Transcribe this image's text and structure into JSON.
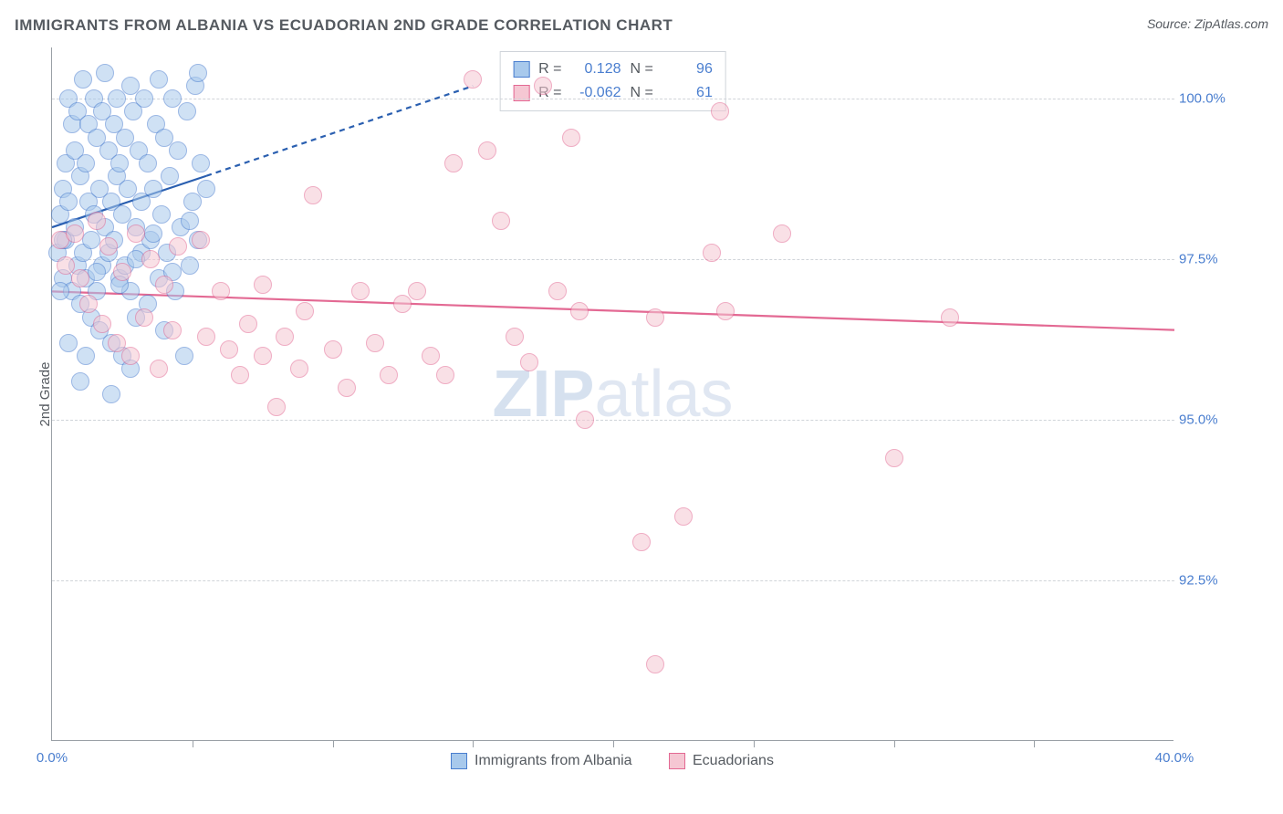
{
  "header": {
    "title": "IMMIGRANTS FROM ALBANIA VS ECUADORIAN 2ND GRADE CORRELATION CHART",
    "source": "Source: ZipAtlas.com"
  },
  "chart": {
    "type": "scatter",
    "ylabel": "2nd Grade",
    "background": "#ffffff",
    "axis_color": "#9aa0a6",
    "grid_color": "#d0d4d9",
    "tick_color": "#4a7ecf",
    "text_color": "#555a60",
    "xlim": [
      0,
      40
    ],
    "ylim": [
      90,
      100.8
    ],
    "x_tick_label_min": "0.0%",
    "x_tick_label_max": "40.0%",
    "x_minor_ticks": [
      5,
      10,
      15,
      20,
      25,
      30,
      35
    ],
    "yticks": [
      {
        "v": 92.5,
        "label": "92.5%"
      },
      {
        "v": 95.0,
        "label": "95.0%"
      },
      {
        "v": 97.5,
        "label": "97.5%"
      },
      {
        "v": 100.0,
        "label": "100.0%"
      }
    ],
    "marker_radius": 10,
    "marker_opacity": 0.55,
    "marker_border_width": 1.2,
    "series": [
      {
        "name": "Immigrants from Albania",
        "color_fill": "#a8c9ec",
        "color_stroke": "#4a7ecf",
        "R": "0.128",
        "N": "96",
        "trend": {
          "x1": 0,
          "y1": 98.0,
          "x2": 5.5,
          "y2": 98.8,
          "dash_x2": 15,
          "dash_y2": 100.2,
          "color": "#2a5fb0",
          "width": 2.2
        },
        "points": [
          [
            0.2,
            97.6
          ],
          [
            0.3,
            98.2
          ],
          [
            0.4,
            97.2
          ],
          [
            0.4,
            98.6
          ],
          [
            0.5,
            99.0
          ],
          [
            0.5,
            97.8
          ],
          [
            0.6,
            100.0
          ],
          [
            0.6,
            98.4
          ],
          [
            0.7,
            99.6
          ],
          [
            0.7,
            97.0
          ],
          [
            0.8,
            98.0
          ],
          [
            0.8,
            99.2
          ],
          [
            0.9,
            97.4
          ],
          [
            0.9,
            99.8
          ],
          [
            1.0,
            96.8
          ],
          [
            1.0,
            98.8
          ],
          [
            1.1,
            100.3
          ],
          [
            1.1,
            97.6
          ],
          [
            1.2,
            99.0
          ],
          [
            1.2,
            97.2
          ],
          [
            1.3,
            98.4
          ],
          [
            1.3,
            99.6
          ],
          [
            1.4,
            97.8
          ],
          [
            1.4,
            96.6
          ],
          [
            1.5,
            98.2
          ],
          [
            1.5,
            100.0
          ],
          [
            1.6,
            99.4
          ],
          [
            1.6,
            97.0
          ],
          [
            1.7,
            98.6
          ],
          [
            1.7,
            96.4
          ],
          [
            1.8,
            99.8
          ],
          [
            1.8,
            97.4
          ],
          [
            1.9,
            98.0
          ],
          [
            1.9,
            100.4
          ],
          [
            2.0,
            97.6
          ],
          [
            2.0,
            99.2
          ],
          [
            2.1,
            96.2
          ],
          [
            2.1,
            98.4
          ],
          [
            2.2,
            99.6
          ],
          [
            2.2,
            97.8
          ],
          [
            2.3,
            98.8
          ],
          [
            2.3,
            100.0
          ],
          [
            2.4,
            97.2
          ],
          [
            2.4,
            99.0
          ],
          [
            2.5,
            96.0
          ],
          [
            2.5,
            98.2
          ],
          [
            2.6,
            99.4
          ],
          [
            2.6,
            97.4
          ],
          [
            2.7,
            98.6
          ],
          [
            2.8,
            100.2
          ],
          [
            2.8,
            97.0
          ],
          [
            2.9,
            99.8
          ],
          [
            3.0,
            98.0
          ],
          [
            3.0,
            96.6
          ],
          [
            3.1,
            99.2
          ],
          [
            3.2,
            97.6
          ],
          [
            3.2,
            98.4
          ],
          [
            3.3,
            100.0
          ],
          [
            3.4,
            96.8
          ],
          [
            3.4,
            99.0
          ],
          [
            3.5,
            97.8
          ],
          [
            3.6,
            98.6
          ],
          [
            3.7,
            99.6
          ],
          [
            3.8,
            97.2
          ],
          [
            3.8,
            100.3
          ],
          [
            3.9,
            98.2
          ],
          [
            4.0,
            96.4
          ],
          [
            4.0,
            99.4
          ],
          [
            4.1,
            97.6
          ],
          [
            4.2,
            98.8
          ],
          [
            4.3,
            100.0
          ],
          [
            4.4,
            97.0
          ],
          [
            4.5,
            99.2
          ],
          [
            4.6,
            98.0
          ],
          [
            4.7,
            96.0
          ],
          [
            4.8,
            99.8
          ],
          [
            4.9,
            97.4
          ],
          [
            5.0,
            98.4
          ],
          [
            5.1,
            100.2
          ],
          [
            5.2,
            97.8
          ],
          [
            5.3,
            99.0
          ],
          [
            5.5,
            98.6
          ],
          [
            1.0,
            95.6
          ],
          [
            2.1,
            95.4
          ],
          [
            0.3,
            97.0
          ],
          [
            0.4,
            97.8
          ],
          [
            1.6,
            97.3
          ],
          [
            2.4,
            97.1
          ],
          [
            3.0,
            97.5
          ],
          [
            3.6,
            97.9
          ],
          [
            4.3,
            97.3
          ],
          [
            4.9,
            98.1
          ],
          [
            5.2,
            100.4
          ],
          [
            0.6,
            96.2
          ],
          [
            1.2,
            96.0
          ],
          [
            2.8,
            95.8
          ]
        ]
      },
      {
        "name": "Ecuadorians",
        "color_fill": "#f5c7d3",
        "color_stroke": "#e36993",
        "R": "-0.062",
        "N": "61",
        "trend": {
          "x1": 0,
          "y1": 97.0,
          "x2": 40,
          "y2": 96.4,
          "color": "#e36993",
          "width": 2.2
        },
        "points": [
          [
            0.3,
            97.8
          ],
          [
            0.5,
            97.4
          ],
          [
            0.8,
            97.9
          ],
          [
            1.0,
            97.2
          ],
          [
            1.3,
            96.8
          ],
          [
            1.6,
            98.1
          ],
          [
            1.8,
            96.5
          ],
          [
            2.0,
            97.7
          ],
          [
            2.3,
            96.2
          ],
          [
            2.5,
            97.3
          ],
          [
            2.8,
            96.0
          ],
          [
            3.0,
            97.9
          ],
          [
            3.3,
            96.6
          ],
          [
            3.5,
            97.5
          ],
          [
            3.8,
            95.8
          ],
          [
            4.0,
            97.1
          ],
          [
            4.3,
            96.4
          ],
          [
            4.5,
            97.7
          ],
          [
            5.3,
            97.8
          ],
          [
            5.5,
            96.3
          ],
          [
            6.0,
            97.0
          ],
          [
            6.3,
            96.1
          ],
          [
            6.7,
            95.7
          ],
          [
            7.0,
            96.5
          ],
          [
            7.5,
            96.0
          ],
          [
            7.5,
            97.1
          ],
          [
            8.0,
            95.2
          ],
          [
            8.3,
            96.3
          ],
          [
            8.8,
            95.8
          ],
          [
            9.0,
            96.7
          ],
          [
            9.3,
            98.5
          ],
          [
            10.0,
            96.1
          ],
          [
            10.5,
            95.5
          ],
          [
            11.0,
            97.0
          ],
          [
            11.5,
            96.2
          ],
          [
            12.0,
            95.7
          ],
          [
            12.5,
            96.8
          ],
          [
            13.0,
            97.0
          ],
          [
            13.5,
            96.0
          ],
          [
            14.0,
            95.7
          ],
          [
            14.3,
            99.0
          ],
          [
            15.0,
            100.3
          ],
          [
            15.5,
            99.2
          ],
          [
            16.0,
            98.1
          ],
          [
            16.5,
            96.3
          ],
          [
            17.0,
            95.9
          ],
          [
            17.5,
            100.2
          ],
          [
            18.0,
            97.0
          ],
          [
            18.5,
            99.4
          ],
          [
            18.8,
            96.7
          ],
          [
            19.0,
            95.0
          ],
          [
            21.0,
            93.1
          ],
          [
            21.5,
            96.6
          ],
          [
            22.5,
            93.5
          ],
          [
            23.5,
            97.6
          ],
          [
            23.8,
            99.8
          ],
          [
            24.0,
            96.7
          ],
          [
            26.0,
            97.9
          ],
          [
            30.0,
            94.4
          ],
          [
            32.0,
            96.6
          ],
          [
            21.5,
            91.2
          ]
        ]
      }
    ],
    "legend_bottom": [
      {
        "label": "Immigrants from Albania",
        "fill": "#a8c9ec",
        "stroke": "#4a7ecf"
      },
      {
        "label": "Ecuadorians",
        "fill": "#f5c7d3",
        "stroke": "#e36993"
      }
    ],
    "watermark": {
      "bold": "ZIP",
      "light": "atlas"
    }
  }
}
